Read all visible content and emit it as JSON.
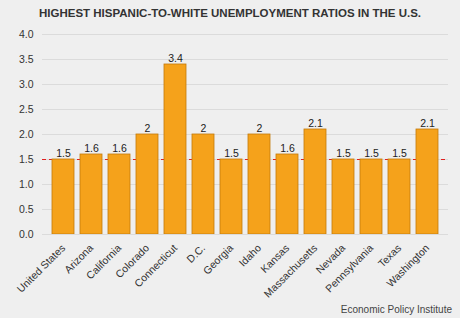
{
  "chart_data": {
    "type": "bar",
    "title": "HIGHEST HISPANIC-TO-WHITE UNEMPLOYMENT RATIOS IN THE U.S.",
    "caption": "Economic Policy Institute",
    "categories": [
      "United States",
      "Arizona",
      "California",
      "Colorado",
      "Connecticut",
      "D.C.",
      "Georgia",
      "Idaho",
      "Kansas",
      "Massachusetts",
      "Nevada",
      "Pennsylvania",
      "Texas",
      "Washington"
    ],
    "values": [
      1.5,
      1.6,
      1.6,
      2,
      3.4,
      2,
      1.5,
      2,
      1.6,
      2.1,
      1.5,
      1.5,
      1.5,
      2.1
    ],
    "color": "#f5a21b",
    "ylim": [
      0,
      4
    ],
    "yticks": [
      {
        "value": 0,
        "label": "0.0"
      },
      {
        "value": 0.5,
        "label": "0.5"
      },
      {
        "value": 1,
        "label": "1.0"
      },
      {
        "value": 1.5,
        "label": "1.5"
      },
      {
        "value": 2,
        "label": "2.0"
      },
      {
        "value": 2.5,
        "label": "2.5"
      },
      {
        "value": 3,
        "label": "3.0"
      },
      {
        "value": 3.5,
        "label": "3.5"
      },
      {
        "value": 4,
        "label": "4.0"
      }
    ],
    "grid": true,
    "data_labels": true,
    "reference_line": {
      "value": 1.5,
      "color": "#e02020",
      "line_style": "dashed"
    }
  }
}
